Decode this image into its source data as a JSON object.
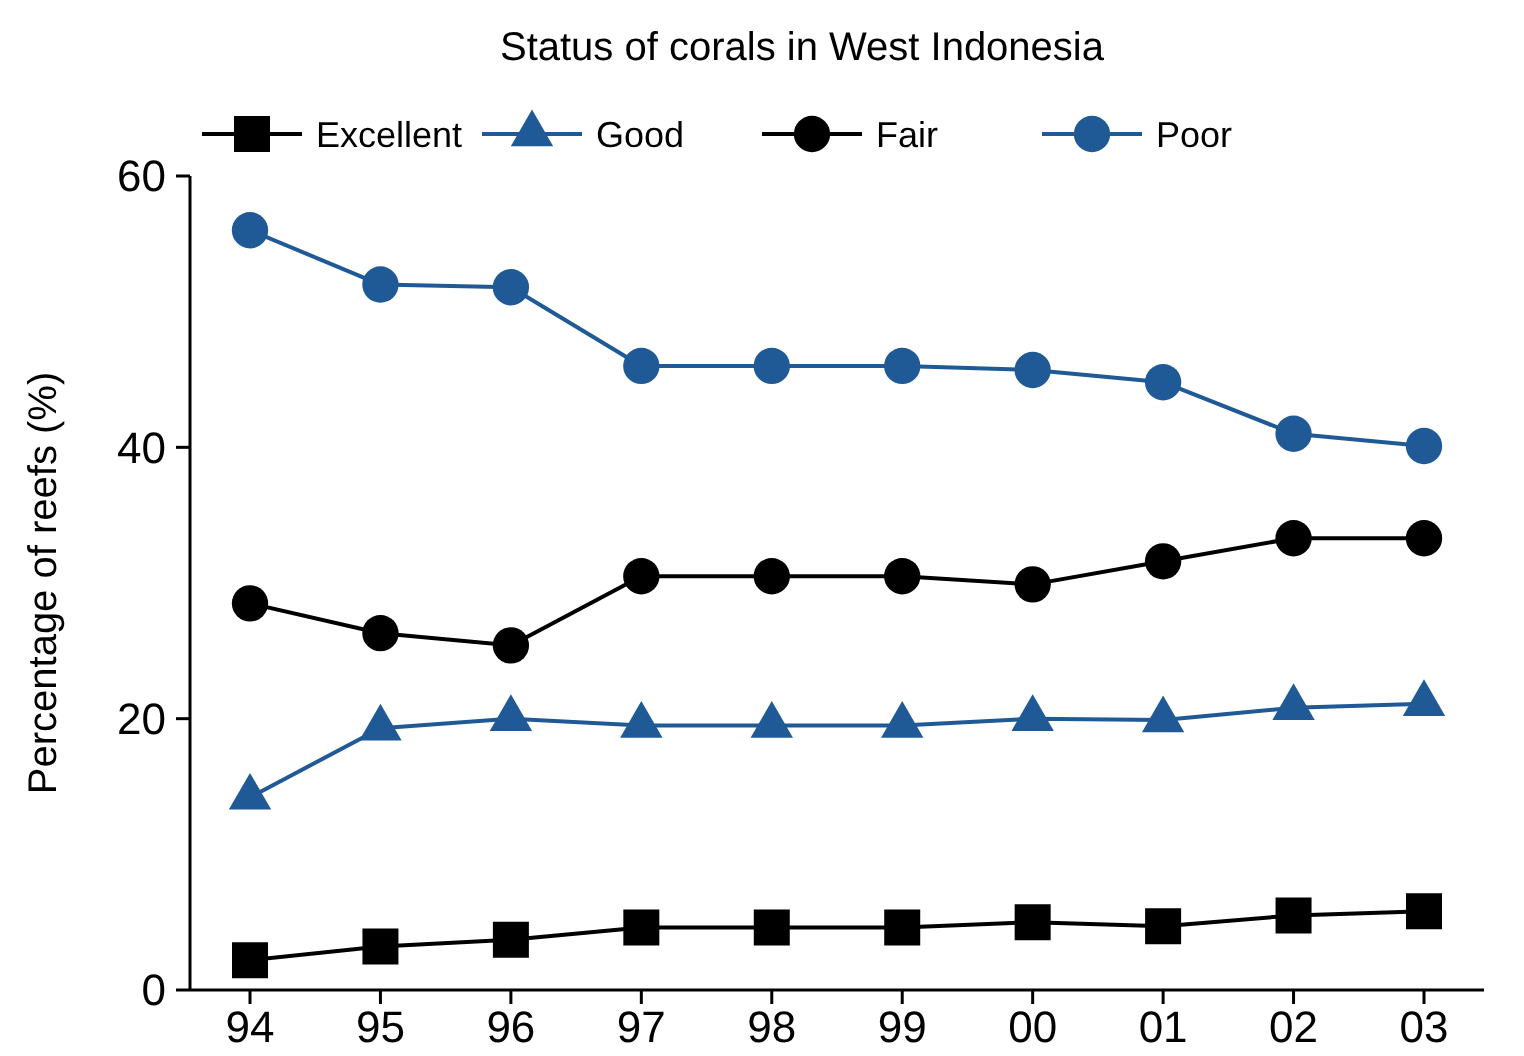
{
  "chart_data": {
    "type": "line",
    "title": "Status of corals in West Indonesia",
    "ylabel": "Percentage of reefs (%)",
    "categories": [
      "94",
      "95",
      "96",
      "97",
      "98",
      "99",
      "00",
      "01",
      "02",
      "03"
    ],
    "series": [
      {
        "name": "Excellent",
        "color": "#000000",
        "marker": "square",
        "values": [
          2.2,
          3.2,
          3.7,
          4.6,
          4.6,
          4.6,
          5,
          4.7,
          5.5,
          5.8
        ]
      },
      {
        "name": "Good",
        "color": "#1f5a96",
        "marker": "triangle",
        "values": [
          14.2,
          19.3,
          20,
          19.5,
          19.5,
          19.5,
          20,
          19.9,
          20.8,
          21.1
        ]
      },
      {
        "name": "Fair",
        "color": "#000000",
        "marker": "circle",
        "values": [
          28.5,
          26.3,
          25.4,
          30.5,
          30.5,
          30.5,
          29.9,
          31.6,
          33.3,
          33.3
        ]
      },
      {
        "name": "Poor",
        "color": "#1f5a96",
        "marker": "circle",
        "values": [
          56,
          52,
          51.8,
          46,
          46,
          46,
          45.7,
          44.8,
          41,
          40.1
        ]
      }
    ],
    "ylim": [
      0,
      60
    ],
    "yticks": [
      0,
      20,
      40,
      60
    ],
    "grid": false,
    "legend": "top",
    "line_style": "solid"
  }
}
